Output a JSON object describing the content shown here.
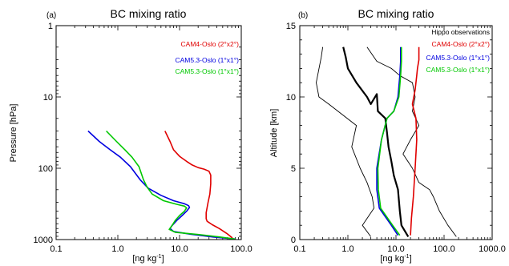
{
  "chart_data": [
    {
      "type": "line",
      "panel_label": "(a)",
      "title": "BC mixing ratio",
      "xlabel": "[ng kg-1]",
      "xlabel_main": "[ng kg",
      "xlabel_sup": "-1",
      "xlabel_end": "]",
      "ylabel": "Pressure [hPa]",
      "xscale": "log",
      "yscale": "log",
      "yinverted": true,
      "xlim": [
        0.1,
        100.0
      ],
      "ylim": [
        1,
        1000
      ],
      "xticks": [
        "0.1",
        "1.0",
        "10.0",
        "100.0"
      ],
      "yticks": [
        "1",
        "10",
        "100",
        "1000"
      ],
      "legend_position": "top-right",
      "series": [
        {
          "name": "CAM4-Oslo (2°x2°)",
          "color": "#e00000",
          "points": [
            [
              5.8,
              30
            ],
            [
              7,
              42
            ],
            [
              8,
              55
            ],
            [
              10,
              68
            ],
            [
              13,
              80
            ],
            [
              16,
              90
            ],
            [
              20,
              98
            ],
            [
              25,
              103
            ],
            [
              30,
              110
            ],
            [
              32,
              125
            ],
            [
              32,
              165
            ],
            [
              31,
              230
            ],
            [
              29,
              300
            ],
            [
              28,
              355
            ],
            [
              27,
              420
            ],
            [
              27,
              510
            ],
            [
              28,
              555
            ],
            [
              34,
              620
            ],
            [
              44,
              700
            ],
            [
              58,
              820
            ],
            [
              72,
              950
            ]
          ]
        },
        {
          "name": "CAM5.3-Oslo (1°x1°)",
          "color": "#0000e0",
          "points": [
            [
              0.33,
              30
            ],
            [
              0.5,
              42
            ],
            [
              0.75,
              55
            ],
            [
              1.1,
              70
            ],
            [
              1.6,
              95
            ],
            [
              2.3,
              145
            ],
            [
              3.1,
              190
            ],
            [
              5,
              240
            ],
            [
              8,
              285
            ],
            [
              12,
              315
            ],
            [
              14,
              335
            ],
            [
              14.5,
              355
            ],
            [
              13,
              400
            ],
            [
              11,
              460
            ],
            [
              9,
              540
            ],
            [
              7.5,
              640
            ],
            [
              7,
              700
            ],
            [
              8,
              770
            ],
            [
              15,
              840
            ],
            [
              35,
              920
            ],
            [
              78,
              980
            ]
          ]
        },
        {
          "name": "CAM5.3-Oslo (1°x1°)",
          "color": "#00c800",
          "points": [
            [
              0.65,
              30
            ],
            [
              0.95,
              42
            ],
            [
              1.3,
              55
            ],
            [
              1.7,
              70
            ],
            [
              2.2,
              95
            ],
            [
              2.6,
              145
            ],
            [
              3.0,
              185
            ],
            [
              3.6,
              230
            ],
            [
              5.5,
              285
            ],
            [
              9,
              320
            ],
            [
              12,
              340
            ],
            [
              13,
              360
            ],
            [
              12,
              400
            ],
            [
              10,
              460
            ],
            [
              8.5,
              540
            ],
            [
              7.5,
              640
            ],
            [
              6.8,
              720
            ],
            [
              8.5,
              790
            ],
            [
              20,
              850
            ],
            [
              45,
              920
            ],
            [
              80,
              985
            ]
          ]
        }
      ]
    },
    {
      "type": "line",
      "panel_label": "(b)",
      "title": "BC mixing ratio",
      "xlabel": "[ng kg-1]",
      "xlabel_main": "[ng kg",
      "xlabel_sup": "-1",
      "xlabel_end": "]",
      "ylabel": "Altitude [km]",
      "xscale": "log",
      "yscale": "linear",
      "xlim": [
        0.1,
        1000.0
      ],
      "ylim": [
        0,
        15
      ],
      "xticks": [
        "0.1",
        "1.0",
        "10.0",
        "100.0",
        "1000.0"
      ],
      "yticks": [
        "0",
        "5",
        "10",
        "15"
      ],
      "legend_title": "Hippo observations",
      "legend_position": "top-right",
      "series": [
        {
          "name": "Hippo observations",
          "color": "#000000",
          "width": 2.2,
          "points": [
            [
              0.8,
              13.5
            ],
            [
              0.9,
              12.8
            ],
            [
              1.0,
              12.0
            ],
            [
              1.5,
              11.0
            ],
            [
              2.5,
              10.0
            ],
            [
              3.0,
              9.5
            ],
            [
              4.0,
              10.2
            ],
            [
              4.2,
              9.0
            ],
            [
              6.0,
              8.5
            ],
            [
              6.5,
              7.5
            ],
            [
              7.0,
              6.5
            ],
            [
              8.0,
              5.5
            ],
            [
              9.0,
              4.5
            ],
            [
              11.0,
              3.5
            ],
            [
              12.0,
              2.0
            ],
            [
              13.0,
              1.0
            ],
            [
              18.0,
              0.2
            ]
          ]
        },
        {
          "name": "Hippo observations",
          "color": "#000000",
          "width": 0.9,
          "points": [
            [
              0.3,
              13.5
            ],
            [
              0.28,
              12.8
            ],
            [
              0.22,
              11.0
            ],
            [
              0.25,
              10.0
            ],
            [
              0.4,
              9.5
            ],
            [
              1.5,
              8.0
            ],
            [
              1.2,
              6.5
            ],
            [
              1.8,
              5.0
            ],
            [
              2.5,
              4.0
            ],
            [
              3.2,
              3.0
            ],
            [
              3.5,
              2.2
            ],
            [
              2.0,
              1.0
            ],
            [
              3.0,
              0.2
            ]
          ]
        },
        {
          "name": "Hippo observations",
          "color": "#000000",
          "width": 0.9,
          "points": [
            [
              2.5,
              13.5
            ],
            [
              4.0,
              12.5
            ],
            [
              8.0,
              12.0
            ],
            [
              12.0,
              11.5
            ],
            [
              22.0,
              11.0
            ],
            [
              25.0,
              10.0
            ],
            [
              22.0,
              9.0
            ],
            [
              30.0,
              8.0
            ],
            [
              20.0,
              7.0
            ],
            [
              14.0,
              6.0
            ],
            [
              22.0,
              5.0
            ],
            [
              30.0,
              4.0
            ],
            [
              50.0,
              3.5
            ],
            [
              60.0,
              3.0
            ],
            [
              80.0,
              2.0
            ],
            [
              120.0,
              1.0
            ],
            [
              180.0,
              0.2
            ]
          ]
        },
        {
          "name": "CAM4-Oslo (2°x2°)",
          "color": "#e00000",
          "points": [
            [
              30,
              13.5
            ],
            [
              30,
              12.6
            ],
            [
              28,
              12.0
            ],
            [
              27,
              11.5
            ],
            [
              25,
              10.5
            ],
            [
              22,
              9.5
            ],
            [
              26,
              8.5
            ],
            [
              27,
              7.0
            ],
            [
              25,
              5.0
            ],
            [
              23,
              3.0
            ],
            [
              21,
              1.5
            ],
            [
              20,
              0.3
            ]
          ]
        },
        {
          "name": "CAM5.3-Oslo (1°x1°)",
          "color": "#0000e0",
          "points": [
            [
              12.5,
              13.5
            ],
            [
              12.5,
              12.5
            ],
            [
              12,
              11.5
            ],
            [
              11,
              10.0
            ],
            [
              9,
              9.0
            ],
            [
              6.5,
              8.5
            ],
            [
              5,
              7.0
            ],
            [
              4,
              5.0
            ],
            [
              4,
              3.5
            ],
            [
              4.5,
              2.2
            ],
            [
              8,
              1.0
            ],
            [
              11,
              0.3
            ]
          ]
        },
        {
          "name": "CAM5.3-Oslo (1°x1°)",
          "color": "#00c800",
          "points": [
            [
              13,
              13.5
            ],
            [
              13,
              12.5
            ],
            [
              12.5,
              11.5
            ],
            [
              11.5,
              10.0
            ],
            [
              9,
              9.0
            ],
            [
              6.5,
              8.5
            ],
            [
              5,
              7.0
            ],
            [
              4.2,
              5.0
            ],
            [
              4.3,
              3.5
            ],
            [
              4.8,
              2.2
            ],
            [
              8.5,
              1.0
            ],
            [
              12,
              0.3
            ]
          ]
        }
      ]
    }
  ]
}
